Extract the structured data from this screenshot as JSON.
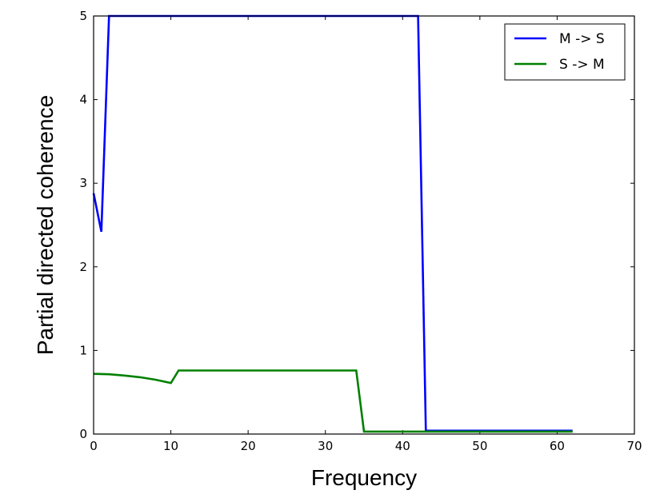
{
  "chart_data": {
    "type": "line",
    "xlabel": "Frequency",
    "ylabel": "Partial directed coherence",
    "xlim": [
      0,
      70
    ],
    "ylim": [
      0,
      5
    ],
    "xticks": [
      "0",
      "10",
      "20",
      "30",
      "40",
      "50",
      "60",
      "70"
    ],
    "yticks": [
      "0",
      "1",
      "2",
      "3",
      "4",
      "5"
    ],
    "grid": false,
    "legend_position": "top-right",
    "series": [
      {
        "name": "M -> S",
        "color": "#0000ff",
        "x": [
          0,
          1,
          2,
          42,
          43,
          62
        ],
        "y": [
          2.88,
          2.42,
          5.0,
          5.0,
          0.04,
          0.04
        ]
      },
      {
        "name": "S -> M",
        "color": "#008000",
        "x": [
          0,
          2,
          4,
          6,
          8,
          10,
          11,
          34,
          35,
          62
        ],
        "y": [
          0.72,
          0.715,
          0.7,
          0.68,
          0.65,
          0.61,
          0.76,
          0.76,
          0.03,
          0.03
        ]
      }
    ]
  }
}
